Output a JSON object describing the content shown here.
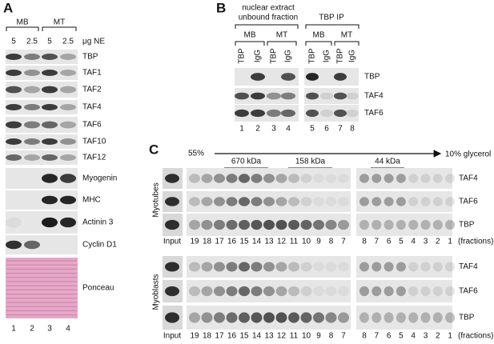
{
  "panel_a": {
    "label": "A",
    "groups": [
      "MB",
      "MT"
    ],
    "amounts": [
      "5",
      "2.5",
      "5",
      "2.5"
    ],
    "unit": "μg NE",
    "rows": [
      "TBP",
      "TAF1",
      "TAF2",
      "TAF4",
      "TAF6",
      "TAF10",
      "TAF12",
      "Myogenin",
      "MHC",
      "Actinin 3",
      "Cyclin D1",
      "Ponceau"
    ],
    "lanes": [
      "1",
      "2",
      "3",
      "4"
    ]
  },
  "panel_b": {
    "label": "B",
    "left_title": [
      "nuclear extract",
      "unbound fraction"
    ],
    "right_title": "TBP IP",
    "groups": [
      "MB",
      "MT",
      "MB",
      "MT"
    ],
    "antibodies": [
      "TBP",
      "IgG",
      "TBP",
      "IgG",
      "TBP",
      "IgG",
      "TBP",
      "IgG"
    ],
    "rows": [
      "TBP",
      "TAF4",
      "TAF6"
    ],
    "lanes": [
      "1",
      "2",
      "3",
      "4",
      "5",
      "6",
      "7",
      "8"
    ]
  },
  "panel_c": {
    "label": "C",
    "gradient_start": "55%",
    "gradient_end": "10% glycerol",
    "markers": [
      "670 kDa",
      "158 kDa",
      "44 kDa"
    ],
    "blocks": [
      {
        "name": "Myotubes",
        "rows": [
          "TAF4",
          "TAF6",
          "TBP"
        ]
      },
      {
        "name": "Myoblasts",
        "rows": [
          "TAF4",
          "TAF6",
          "TBP"
        ]
      }
    ],
    "input": "Input",
    "fractions_left": [
      "19",
      "18",
      "17",
      "16",
      "15",
      "14",
      "13",
      "12",
      "11",
      "10",
      "9",
      "8",
      "7"
    ],
    "fractions_right": [
      "8",
      "7",
      "6",
      "5",
      "4",
      "3",
      "2",
      "1"
    ],
    "fractions_label": "(fractions)"
  }
}
